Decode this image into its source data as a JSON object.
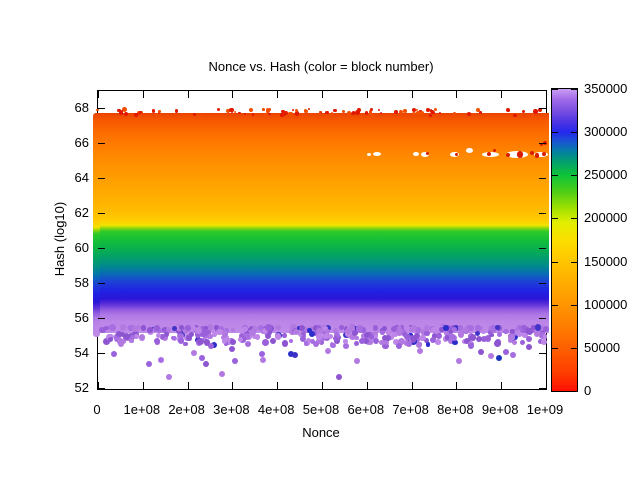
{
  "chart_data": {
    "type": "scatter",
    "title": "Nonce vs. Hash (color = block number)",
    "xlabel": "Nonce",
    "ylabel": "Hash (log10)",
    "x_range": [
      0,
      1000000000
    ],
    "y_range": [
      52,
      68
    ],
    "grid": false,
    "x_ticks": [
      "0",
      "1e+08",
      "2e+08",
      "3e+08",
      "4e+08",
      "5e+08",
      "6e+08",
      "7e+08",
      "8e+08",
      "9e+08",
      "1e+09"
    ],
    "y_ticks": [
      "68",
      "66",
      "64",
      "62",
      "60",
      "58",
      "56",
      "54",
      "52"
    ],
    "colorbar": {
      "min": 0,
      "max": 350000,
      "tick_labels_top_to_bottom": [
        "350000",
        "300000",
        "250000",
        "200000",
        "150000",
        "100000",
        "50000",
        "0"
      ],
      "stops_bottom_to_top": [
        [
          0.0,
          "#ff0f00"
        ],
        [
          0.055,
          "#fe3a00"
        ],
        [
          0.143,
          "#fd6000"
        ],
        [
          0.215,
          "#fe7e00"
        ],
        [
          0.286,
          "#ff9500"
        ],
        [
          0.37,
          "#ffb100"
        ],
        [
          0.429,
          "#ffc500"
        ],
        [
          0.5,
          "#fbdf00"
        ],
        [
          0.557,
          "#e2ee00"
        ],
        [
          0.6,
          "#a8e200"
        ],
        [
          0.657,
          "#52cf15"
        ],
        [
          0.714,
          "#0ec437"
        ],
        [
          0.757,
          "#03a26b"
        ],
        [
          0.794,
          "#047fa5"
        ],
        [
          0.829,
          "#1b50d6"
        ],
        [
          0.857,
          "#2428ec"
        ],
        [
          0.891,
          "#4d35e2"
        ],
        [
          0.929,
          "#7a4fe2"
        ],
        [
          0.966,
          "#a26ce9"
        ],
        [
          1.0,
          "#c99ef2"
        ]
      ]
    },
    "main_band": {
      "hash_top": 67.72,
      "hash_bottom": 55.14,
      "stops": [
        [
          67.72,
          "#e94300"
        ],
        [
          67.3,
          "#f65800"
        ],
        [
          66.5,
          "#fd6f00"
        ],
        [
          65.3,
          "#ff8800"
        ],
        [
          64.1,
          "#ff9c00"
        ],
        [
          63.0,
          "#ffad00"
        ],
        [
          62.1,
          "#ffbd00"
        ],
        [
          61.55,
          "#fecf00"
        ],
        [
          61.3,
          "#f2e300"
        ],
        [
          61.12,
          "#86d511"
        ],
        [
          60.95,
          "#2eca29"
        ],
        [
          60.4,
          "#12bd3b"
        ],
        [
          59.8,
          "#06ab56"
        ],
        [
          59.25,
          "#019778"
        ],
        [
          58.8,
          "#02809c"
        ],
        [
          58.45,
          "#0c64bc"
        ],
        [
          58.05,
          "#1e3fd6"
        ],
        [
          57.55,
          "#1f22e3"
        ],
        [
          57.1,
          "#2b15d8"
        ],
        [
          56.8,
          "#5a2ed8"
        ],
        [
          56.5,
          "#8e58e0"
        ],
        [
          56.2,
          "#ae77e5"
        ],
        [
          55.8,
          "#bb85e8"
        ],
        [
          55.14,
          "#bf8ce9"
        ]
      ]
    },
    "top_speckles": {
      "hash_center": 67.75,
      "count": 95,
      "seed": 11,
      "colors": [
        "#e11800",
        "#f34e00"
      ]
    },
    "fringe": {
      "hash_top": 55.45,
      "hash_bottom": 54.55,
      "count": 330,
      "seed": 5,
      "colors": [
        "#bd86e8",
        "#b27ae0",
        "#a76ee2",
        "#9a60da",
        "#8d55d2"
      ],
      "blue_chance": 0.07,
      "blue_colors": [
        "#2d2dcc",
        "#4233c9"
      ]
    },
    "sparse_fringe": {
      "hash_top": 54.95,
      "hash_bottom": 54.35,
      "count": 55,
      "seed": 9,
      "colors": [
        "#bd86e8",
        "#b27ae0",
        "#a76ee2",
        "#9a60da",
        "#8d55d2"
      ],
      "blue_chance": 0.05,
      "blue_colors": [
        "#2d2dcc",
        "#4233c9"
      ]
    },
    "gap_line": {
      "hash": 65.35,
      "white_blobs": [
        [
          0.605,
          65.35,
          4,
          3
        ],
        [
          0.623,
          65.35,
          8,
          4
        ],
        [
          0.71,
          65.35,
          6,
          4
        ],
        [
          0.73,
          65.32,
          8,
          5
        ],
        [
          0.795,
          65.32,
          9,
          5
        ],
        [
          0.83,
          65.55,
          7,
          5
        ],
        [
          0.877,
          65.35,
          17,
          5
        ],
        [
          0.935,
          65.33,
          22,
          7
        ],
        [
          0.989,
          65.35,
          14,
          5
        ]
      ],
      "red_color": "#d81c00",
      "red_dots": [
        [
          0.736,
          65.4,
          1.5
        ],
        [
          0.801,
          65.32,
          1.5
        ],
        [
          0.873,
          65.38,
          2.0
        ],
        [
          0.884,
          65.6,
          1.5
        ],
        [
          0.915,
          65.3,
          2.0
        ],
        [
          0.942,
          65.35,
          3.2
        ],
        [
          0.969,
          65.45,
          2.0
        ],
        [
          0.98,
          65.28,
          2.4
        ],
        [
          0.996,
          65.35,
          2.0
        ],
        [
          0.998,
          66.0,
          2.0
        ],
        [
          0.99,
          65.9,
          1.5
        ]
      ]
    },
    "outliers": [
      [
        0.036,
        53.94,
        "#9a63dd"
      ],
      [
        0.051,
        54.51,
        "#b27ae0"
      ],
      [
        0.114,
        53.37,
        "#9a63dd"
      ],
      [
        0.14,
        53.6,
        "#a76ee2"
      ],
      [
        0.158,
        52.63,
        "#b27ae0"
      ],
      [
        0.185,
        54.7,
        "#9a63dd"
      ],
      [
        0.214,
        54.0,
        "#b27ae0"
      ],
      [
        0.232,
        53.71,
        "#9a63dd"
      ],
      [
        0.241,
        53.37,
        "#8d55d2"
      ],
      [
        0.252,
        54.4,
        "#9a63dd"
      ],
      [
        0.277,
        52.8,
        "#b27ae0"
      ],
      [
        0.299,
        54.23,
        "#8d55d2"
      ],
      [
        0.306,
        53.54,
        "#9a63dd"
      ],
      [
        0.335,
        54.51,
        "#a76ee2"
      ],
      [
        0.366,
        53.94,
        "#9a63dd"
      ],
      [
        0.368,
        53.6,
        "#b27ae0"
      ],
      [
        0.391,
        54.7,
        "#8d55d2"
      ],
      [
        0.431,
        53.94,
        "#2d2dcc"
      ],
      [
        0.44,
        53.89,
        "#3b31c6"
      ],
      [
        0.458,
        54.8,
        "#9a63dd"
      ],
      [
        0.487,
        54.51,
        "#a76ee2"
      ],
      [
        0.513,
        54.11,
        "#b27ae0"
      ],
      [
        0.538,
        52.63,
        "#8d55d2"
      ],
      [
        0.578,
        53.54,
        "#b27ae0"
      ],
      [
        0.62,
        54.7,
        "#9a63dd"
      ],
      [
        0.647,
        54.86,
        "#8d55d2"
      ],
      [
        0.672,
        54.4,
        "#9a63dd"
      ],
      [
        0.694,
        54.51,
        "#a76ee2"
      ],
      [
        0.719,
        54.11,
        "#b27ae0"
      ],
      [
        0.748,
        54.74,
        "#9a63dd"
      ],
      [
        0.795,
        54.86,
        "#a76ee2"
      ],
      [
        0.806,
        53.54,
        "#b27ae0"
      ],
      [
        0.833,
        54.4,
        "#9a63dd"
      ],
      [
        0.855,
        54.06,
        "#8d55d2"
      ],
      [
        0.877,
        53.83,
        "#b27ae0"
      ],
      [
        0.895,
        53.71,
        "#1a35bb"
      ],
      [
        0.911,
        54.06,
        "#9a63dd"
      ],
      [
        0.926,
        53.89,
        "#a76ee2"
      ],
      [
        0.962,
        54.34,
        "#8d55d2"
      ]
    ]
  }
}
